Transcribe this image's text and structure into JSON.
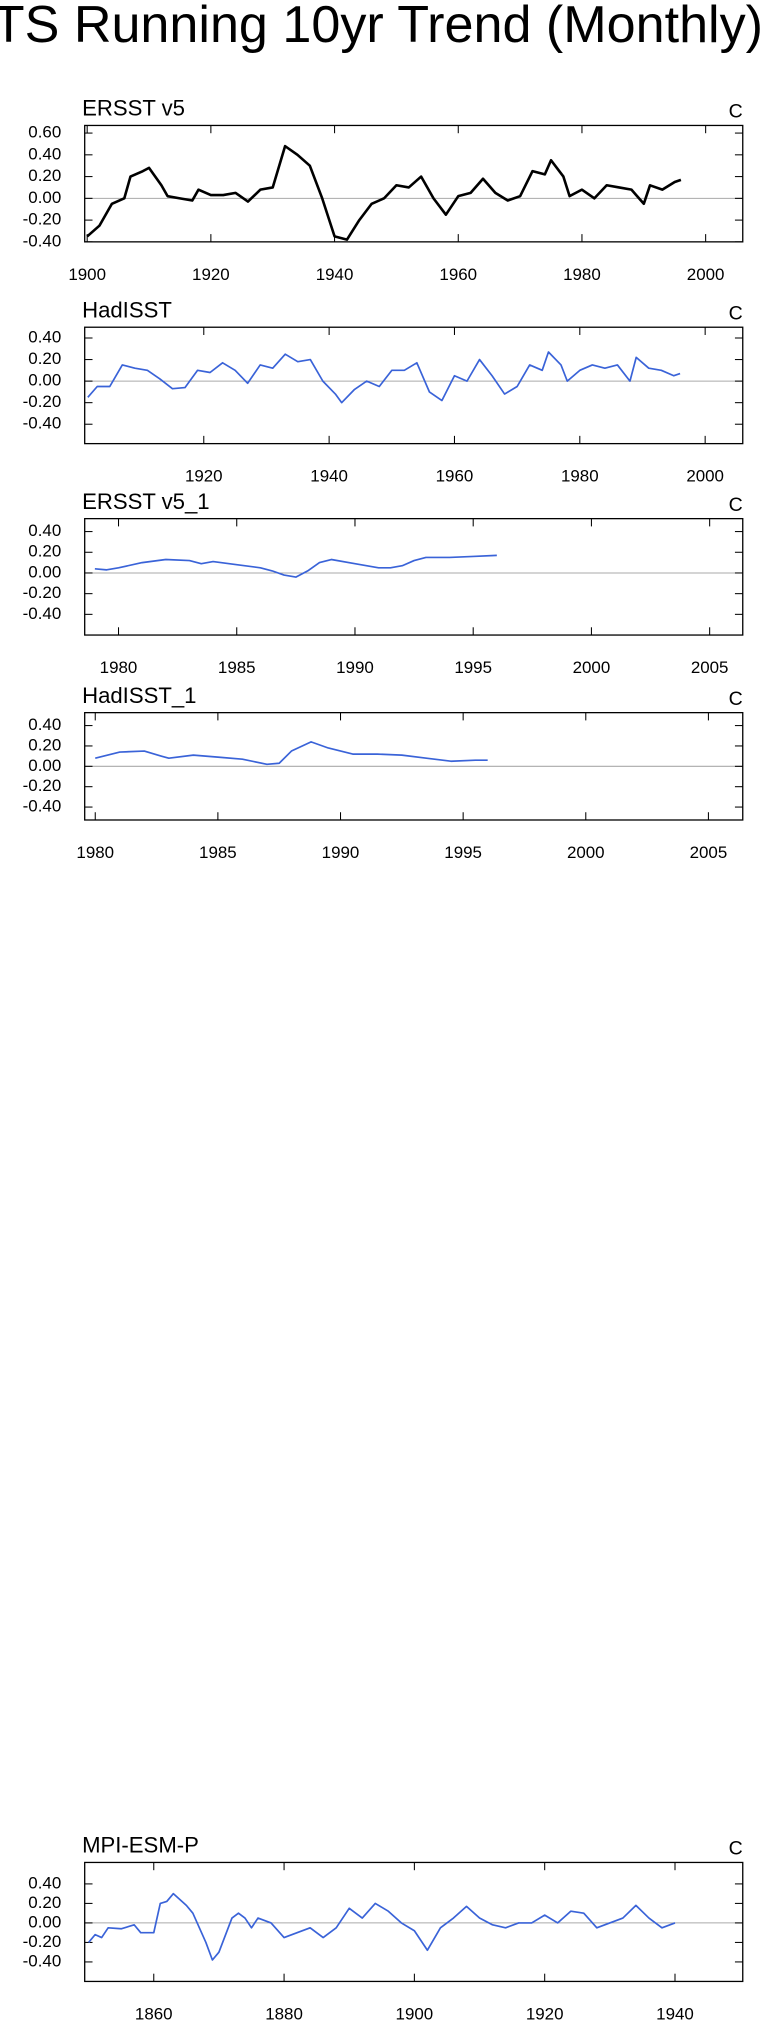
{
  "title": "TS Running 10yr Trend (Monthly)",
  "chart_data": [
    {
      "type": "line",
      "title": "ERSST v5",
      "units": "C",
      "x": [
        1900,
        1902,
        1904,
        1906,
        1907,
        1909,
        1910,
        1912,
        1913,
        1915,
        1917,
        1918,
        1920,
        1922,
        1924,
        1926,
        1928,
        1930,
        1932,
        1934,
        1936,
        1938,
        1940,
        1942,
        1944,
        1946,
        1948,
        1950,
        1952,
        1954,
        1956,
        1958,
        1960,
        1962,
        1964,
        1966,
        1968,
        1970,
        1972,
        1974,
        1975,
        1977,
        1978,
        1980,
        1982,
        1984,
        1986,
        1988,
        1990,
        1991,
        1993,
        1995,
        1996
      ],
      "series": [
        {
          "color": "#000000",
          "values": [
            -0.35,
            -0.25,
            -0.05,
            0.0,
            0.2,
            0.25,
            0.28,
            0.12,
            0.02,
            0.0,
            -0.02,
            0.08,
            0.03,
            0.03,
            0.05,
            -0.03,
            0.08,
            0.1,
            0.48,
            0.4,
            0.3,
            0.0,
            -0.35,
            -0.38,
            -0.2,
            -0.05,
            0.0,
            0.12,
            0.1,
            0.2,
            0.0,
            -0.15,
            0.02,
            0.05,
            0.18,
            0.05,
            -0.02,
            0.02,
            0.25,
            0.22,
            0.35,
            0.2,
            0.02,
            0.08,
            0.0,
            0.12,
            0.1,
            0.08,
            -0.05,
            0.12,
            0.08,
            0.15,
            0.17
          ]
        }
      ],
      "xlim": [
        1899.6,
        2006
      ],
      "ylim": [
        -0.4,
        0.67
      ],
      "xticks": [
        1900,
        1920,
        1940,
        1960,
        1980,
        2000
      ],
      "yticks": [
        {
          "value": 0.6,
          "label": "0.60"
        },
        {
          "value": 0.4,
          "label": "0.40"
        },
        {
          "value": 0.2,
          "label": "0.20"
        },
        {
          "value": 0,
          "label": "0.00"
        },
        {
          "value": -0.2,
          "label": "-0.20"
        },
        {
          "value": -0.4,
          "label": "-0.40"
        }
      ]
    },
    {
      "type": "line",
      "title": "HadISST",
      "units": "C",
      "x": [
        1901.5,
        1903,
        1905,
        1907,
        1909,
        1911,
        1913,
        1915,
        1917,
        1919,
        1921,
        1923,
        1925,
        1927,
        1929,
        1931,
        1933,
        1935,
        1937,
        1939,
        1941,
        1942,
        1944,
        1946,
        1948,
        1950,
        1952,
        1954,
        1956,
        1958,
        1960,
        1962,
        1964,
        1966,
        1968,
        1970,
        1972,
        1974,
        1975,
        1977,
        1978,
        1980,
        1982,
        1984,
        1986,
        1988,
        1989,
        1991,
        1993,
        1995,
        1996
      ],
      "series": [
        {
          "color": "#3a63d8",
          "values": [
            -0.15,
            -0.05,
            -0.05,
            0.15,
            0.12,
            0.1,
            0.02,
            -0.07,
            -0.06,
            0.1,
            0.08,
            0.17,
            0.1,
            -0.02,
            0.15,
            0.12,
            0.25,
            0.18,
            0.2,
            0.0,
            -0.12,
            -0.2,
            -0.08,
            0.0,
            -0.05,
            0.1,
            0.1,
            0.17,
            -0.1,
            -0.18,
            0.05,
            0.0,
            0.2,
            0.05,
            -0.12,
            -0.05,
            0.15,
            0.1,
            0.27,
            0.15,
            0.0,
            0.1,
            0.15,
            0.12,
            0.15,
            0.0,
            0.22,
            0.12,
            0.1,
            0.05,
            0.07
          ]
        }
      ],
      "xlim": [
        1901,
        2006
      ],
      "ylim": [
        -0.58,
        0.5
      ],
      "xticks": [
        1920,
        1940,
        1960,
        1980,
        2000
      ],
      "yticks": [
        {
          "value": 0.4,
          "label": "0.40"
        },
        {
          "value": 0.2,
          "label": "0.20"
        },
        {
          "value": 0,
          "label": "0.00"
        },
        {
          "value": -0.2,
          "label": "-0.20"
        },
        {
          "value": -0.4,
          "label": "-0.40"
        }
      ]
    },
    {
      "type": "line",
      "title": "ERSST v5_1",
      "units": "C",
      "x": [
        1979,
        1979.5,
        1980,
        1981,
        1982,
        1983,
        1983.5,
        1984,
        1985,
        1986,
        1986.5,
        1987,
        1987.5,
        1988,
        1988.5,
        1989,
        1990,
        1991,
        1991.5,
        1992,
        1992.5,
        1993,
        1994,
        1995,
        1996
      ],
      "series": [
        {
          "color": "#3a63d8",
          "values": [
            0.04,
            0.03,
            0.05,
            0.1,
            0.13,
            0.12,
            0.09,
            0.11,
            0.08,
            0.05,
            0.02,
            -0.02,
            -0.04,
            0.02,
            0.1,
            0.13,
            0.09,
            0.05,
            0.05,
            0.07,
            0.12,
            0.15,
            0.15,
            0.16,
            0.17
          ]
        }
      ],
      "xlim": [
        1978.57,
        2006.4
      ],
      "ylim": [
        -0.6,
        0.525
      ],
      "xticks": [
        1980,
        1985,
        1990,
        1995,
        2000,
        2005
      ],
      "yticks": [
        {
          "value": 0.4,
          "label": "0.40"
        },
        {
          "value": 0.2,
          "label": "0.20"
        },
        {
          "value": 0,
          "label": "0.00"
        },
        {
          "value": -0.2,
          "label": "-0.20"
        },
        {
          "value": -0.4,
          "label": "-0.40"
        }
      ]
    },
    {
      "type": "line",
      "title": "HadISST_1",
      "units": "C",
      "x": [
        1980,
        1981,
        1982,
        1982.7,
        1983,
        1984,
        1985,
        1986,
        1987,
        1987.5,
        1988,
        1988.8,
        1989.5,
        1990.5,
        1991.5,
        1992.5,
        1993.5,
        1994.5,
        1995.5,
        1996
      ],
      "series": [
        {
          "color": "#3a63d8",
          "values": [
            0.08,
            0.14,
            0.15,
            0.1,
            0.08,
            0.11,
            0.09,
            0.07,
            0.02,
            0.03,
            0.15,
            0.24,
            0.18,
            0.12,
            0.12,
            0.11,
            0.08,
            0.05,
            0.06,
            0.06
          ]
        }
      ],
      "xlim": [
        1979.57,
        2006.4
      ],
      "ylim": [
        -0.527,
        0.527
      ],
      "xticks": [
        1980,
        1985,
        1990,
        1995,
        2000,
        2005
      ],
      "yticks": [
        {
          "value": 0.4,
          "label": "0.40"
        },
        {
          "value": 0.2,
          "label": "0.20"
        },
        {
          "value": 0,
          "label": "0.00"
        },
        {
          "value": -0.2,
          "label": "-0.20"
        },
        {
          "value": -0.4,
          "label": "-0.40"
        }
      ]
    },
    {
      "type": "line",
      "title": "MPI-ESM-P",
      "units": "C",
      "x": [
        1850,
        1851,
        1852,
        1853,
        1855,
        1857,
        1858,
        1860,
        1861,
        1862,
        1863,
        1865,
        1866,
        1868,
        1869,
        1870,
        1872,
        1873,
        1874,
        1875,
        1876,
        1878,
        1880,
        1882,
        1884,
        1886,
        1888,
        1890,
        1892,
        1894,
        1896,
        1898,
        1900,
        1902,
        1904,
        1906,
        1908,
        1910,
        1912,
        1914,
        1916,
        1918,
        1920,
        1922,
        1924,
        1926,
        1928,
        1930,
        1932,
        1934,
        1936,
        1938,
        1940
      ],
      "series": [
        {
          "color": "#3a63d8",
          "values": [
            -0.2,
            -0.12,
            -0.15,
            -0.05,
            -0.06,
            -0.02,
            -0.1,
            -0.1,
            0.2,
            0.22,
            0.3,
            0.18,
            0.1,
            -0.2,
            -0.38,
            -0.3,
            0.05,
            0.1,
            0.05,
            -0.05,
            0.05,
            0.0,
            -0.15,
            -0.1,
            -0.05,
            -0.15,
            -0.05,
            0.15,
            0.05,
            0.2,
            0.12,
            0.0,
            -0.08,
            -0.28,
            -0.05,
            0.05,
            0.17,
            0.05,
            -0.02,
            -0.05,
            0.0,
            0.0,
            0.08,
            0.0,
            0.12,
            0.1,
            -0.05,
            0.0,
            0.05,
            0.18,
            0.05,
            -0.05,
            0.0
          ]
        }
      ],
      "xlim": [
        1849.4,
        1950.4
      ],
      "ylim": [
        -0.6,
        0.62
      ],
      "xticks": [
        1860,
        1880,
        1900,
        1920,
        1940
      ],
      "yticks": [
        {
          "value": 0.4,
          "label": "0.40"
        },
        {
          "value": 0.2,
          "label": "0.20"
        },
        {
          "value": 0,
          "label": "0.00"
        },
        {
          "value": -0.2,
          "label": "-0.20"
        },
        {
          "value": -0.4,
          "label": "-0.40"
        }
      ]
    }
  ]
}
